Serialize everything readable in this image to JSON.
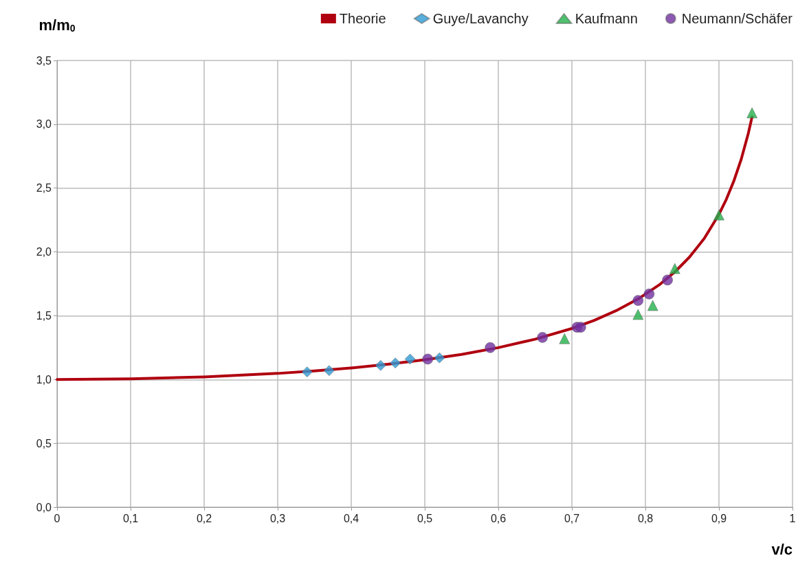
{
  "chart_data": {
    "type": "scatter",
    "ylabel": "m/m$_{0}$",
    "xlabel": "v/c",
    "xlim": [
      0,
      1
    ],
    "xticks": [
      0,
      {
        "value": 0.1,
        "label": "0,1"
      },
      {
        "value": 0.2,
        "label": "0,2"
      },
      {
        "value": 0.3,
        "label": "0,3"
      },
      {
        "value": 0.4,
        "label": "0,4"
      },
      {
        "value": 0.5,
        "label": "0,5"
      },
      {
        "value": 0.6,
        "label": "0,6"
      },
      {
        "value": 0.7,
        "label": "0,7"
      },
      {
        "value": 0.8,
        "label": "0,8"
      },
      {
        "value": 0.9,
        "label": "0,9"
      },
      1
    ],
    "ylim": [
      0,
      3.5
    ],
    "yticks": [
      {
        "value": 0,
        "label": "0,0"
      },
      {
        "value": 0.5,
        "label": "0,5"
      },
      {
        "value": 1,
        "label": "1,0"
      },
      {
        "value": 1.5,
        "label": "1,5"
      },
      {
        "value": 2,
        "label": "2,0"
      },
      {
        "value": 2.5,
        "label": "2,5"
      },
      {
        "value": 3,
        "label": "3,0"
      },
      {
        "value": 3.5,
        "label": "3,5"
      }
    ],
    "grid": true,
    "legend": "top",
    "series": [
      {
        "name": "Theorie",
        "type": "line",
        "marker": "none",
        "line_style": "solid",
        "color": "#b0000f",
        "x": [
          0,
          0.1,
          0.2,
          0.3,
          0.35,
          0.4,
          0.45,
          0.5,
          0.55,
          0.6,
          0.65,
          0.7,
          0.73,
          0.76,
          0.79,
          0.82,
          0.84,
          0.86,
          0.88,
          0.9,
          0.91,
          0.92,
          0.93,
          0.94,
          0.945
        ],
        "values": [
          1,
          1.005,
          1.021,
          1.048,
          1.068,
          1.091,
          1.12,
          1.155,
          1.197,
          1.25,
          1.316,
          1.4,
          1.463,
          1.539,
          1.631,
          1.747,
          1.843,
          1.96,
          2.105,
          2.294,
          2.412,
          2.552,
          2.721,
          2.931,
          3.058
        ]
      },
      {
        "name": "Guye/Lavanchy",
        "marker": "diamond",
        "color": "#2e9bd6",
        "x": [
          0.34,
          0.37,
          0.44,
          0.46,
          0.48,
          0.52
        ],
        "values": [
          1.06,
          1.07,
          1.11,
          1.13,
          1.16,
          1.17
        ]
      },
      {
        "name": "Kaufmann",
        "marker": "triangle",
        "color": "#22b04a",
        "x": [
          0.69,
          0.79,
          0.81,
          0.84,
          0.9,
          0.945
        ],
        "values": [
          1.32,
          1.51,
          1.58,
          1.87,
          2.29,
          3.09
        ]
      },
      {
        "name": "Neumann/Schäfer",
        "marker": "circle",
        "color": "#7030a0",
        "x": [
          0.504,
          0.589,
          0.66,
          0.707,
          0.712,
          0.79,
          0.805,
          0.83
        ],
        "values": [
          1.16,
          1.25,
          1.33,
          1.41,
          1.41,
          1.62,
          1.67,
          1.78
        ]
      }
    ]
  }
}
